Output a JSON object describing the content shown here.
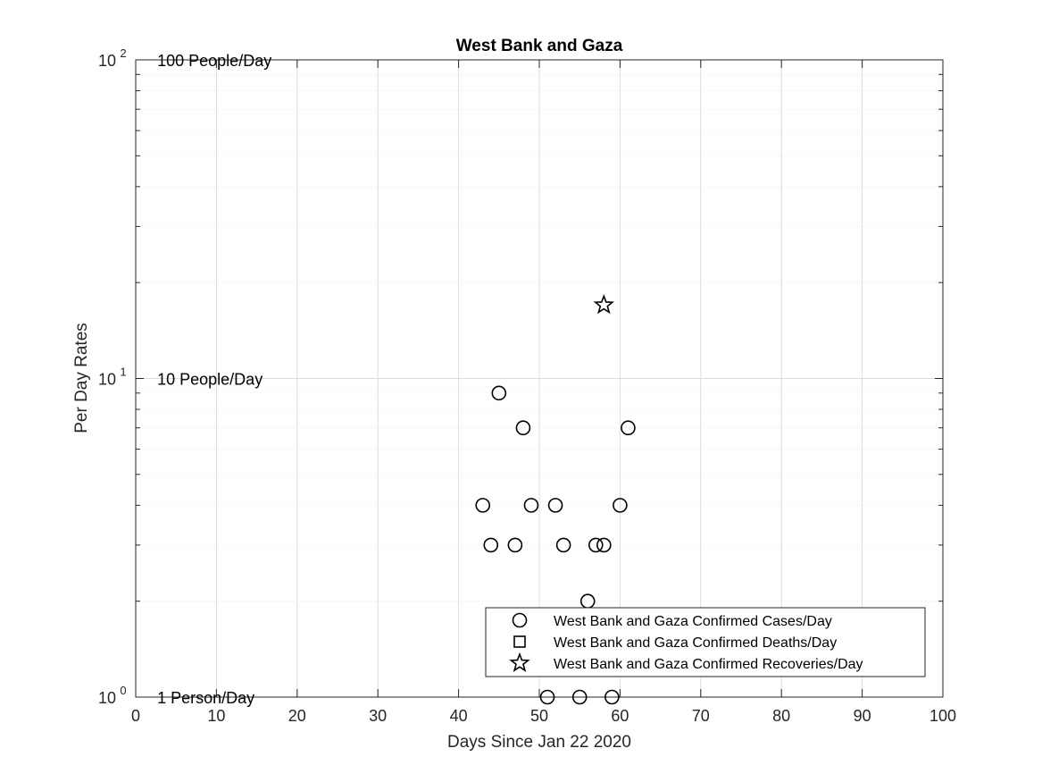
{
  "chart_data": {
    "type": "scatter",
    "title": "West Bank and Gaza",
    "xlabel": "Days Since Jan 22 2020",
    "ylabel": "Per Day Rates",
    "xlim": [
      0,
      100
    ],
    "ylim": [
      1,
      100
    ],
    "yscale": "log",
    "grid": true,
    "legend_position": "bottom-right",
    "x_ticks": [
      0,
      10,
      20,
      30,
      40,
      50,
      60,
      70,
      80,
      90,
      100
    ],
    "y_ticks": [
      {
        "value": 1,
        "base": "10",
        "exp": "0"
      },
      {
        "value": 10,
        "base": "10",
        "exp": "1"
      },
      {
        "value": 100,
        "base": "10",
        "exp": "2"
      }
    ],
    "annotations": [
      {
        "text": "100 People/Day",
        "x": 3,
        "y": 100
      },
      {
        "text": "10 People/Day",
        "x": 3,
        "y": 10
      },
      {
        "text": "1 Person/Day",
        "x": 3,
        "y": 1
      }
    ],
    "series": [
      {
        "name": "West Bank and Gaza Confirmed Cases/Day",
        "marker": "circle",
        "points": [
          {
            "x": 43,
            "y": 4
          },
          {
            "x": 44,
            "y": 3
          },
          {
            "x": 45,
            "y": 9
          },
          {
            "x": 47,
            "y": 3
          },
          {
            "x": 48,
            "y": 7
          },
          {
            "x": 49,
            "y": 4
          },
          {
            "x": 51,
            "y": 1
          },
          {
            "x": 52,
            "y": 4
          },
          {
            "x": 53,
            "y": 3
          },
          {
            "x": 55,
            "y": 1
          },
          {
            "x": 56,
            "y": 2
          },
          {
            "x": 57,
            "y": 3
          },
          {
            "x": 58,
            "y": 3
          },
          {
            "x": 59,
            "y": 1
          },
          {
            "x": 60,
            "y": 4
          },
          {
            "x": 61,
            "y": 7
          }
        ]
      },
      {
        "name": "West Bank and Gaza Confirmed Deaths/Day",
        "marker": "square",
        "points": []
      },
      {
        "name": "West Bank and Gaza Confirmed Recoveries/Day",
        "marker": "star",
        "points": [
          {
            "x": 58,
            "y": 17
          }
        ]
      }
    ]
  }
}
